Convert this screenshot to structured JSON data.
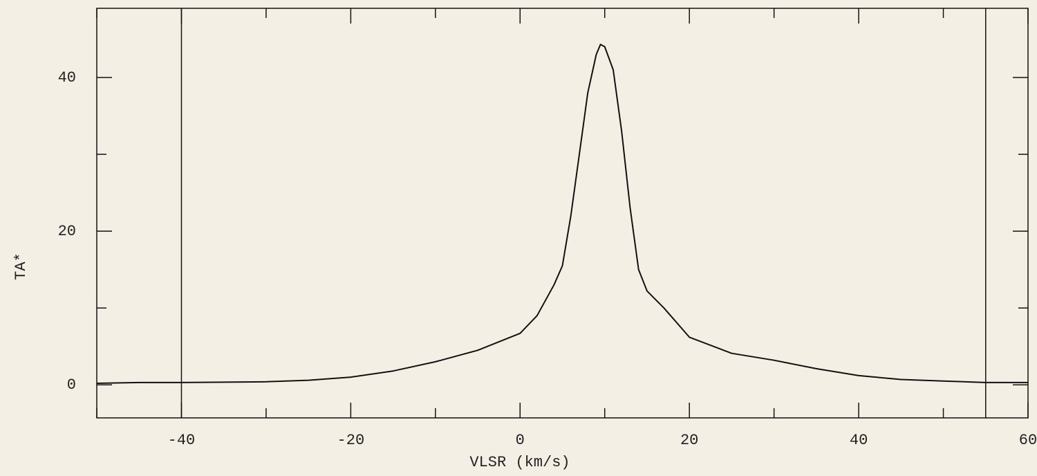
{
  "chart_data": {
    "type": "line",
    "xlabel": "VLSR (km/s)",
    "ylabel": "TA*",
    "x": [
      -50,
      -45,
      -40,
      -35,
      -30,
      -25,
      -20,
      -15,
      -10,
      -5,
      0,
      2,
      4,
      5,
      6,
      7,
      8,
      9,
      9.5,
      10,
      11,
      12,
      13,
      14,
      15,
      17,
      20,
      25,
      30,
      35,
      40,
      45,
      50,
      55,
      60
    ],
    "values": [
      0.2,
      0.3,
      0.3,
      0.35,
      0.4,
      0.6,
      1.0,
      1.8,
      3.0,
      4.5,
      6.7,
      9.0,
      13.0,
      15.5,
      22,
      30,
      38,
      43,
      44.3,
      44,
      41,
      33,
      23,
      15,
      12.2,
      10,
      6.2,
      4.1,
      3.2,
      2.1,
      1.2,
      0.7,
      0.5,
      0.3,
      0.3
    ],
    "color": "#111111",
    "xlim": [
      -50,
      60
    ],
    "ylim": [
      -4.3,
      49
    ],
    "xticks": [
      -40,
      -20,
      0,
      20,
      40,
      60
    ],
    "xminor": [
      -50,
      -30,
      -10,
      10,
      30,
      50
    ],
    "yticks": [
      0,
      20,
      40
    ],
    "yminor": [
      10,
      30
    ],
    "markers": [
      -40,
      55
    ]
  }
}
